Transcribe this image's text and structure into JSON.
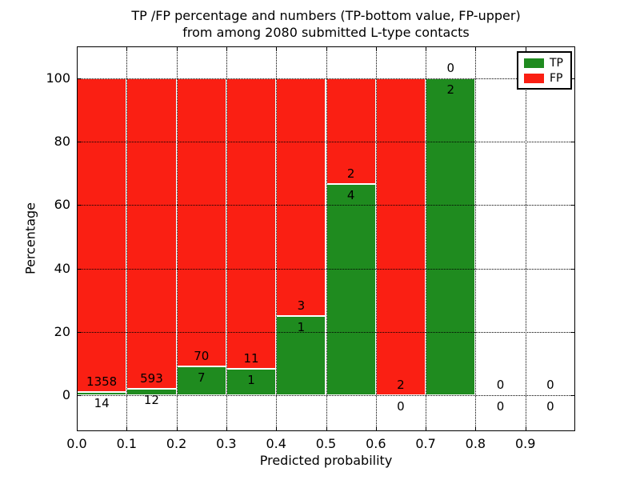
{
  "title": {
    "line1": "TP /FP percentage and numbers (TP-bottom value, FP-upper)",
    "line2": "from among 2080 submitted L-type contacts"
  },
  "axes": {
    "xlabel": "Predicted probability",
    "ylabel": "Percentage"
  },
  "legend": {
    "position": "upper right",
    "entries": [
      {
        "label": "TP",
        "color": "#1f8b1f"
      },
      {
        "label": "FP",
        "color": "#fa1f13"
      }
    ]
  },
  "chart_data": {
    "type": "bar",
    "stacked": true,
    "normalized": "each bar scaled to 100%; count labels shown (TP below boundary, FP above)",
    "title": "TP /FP percentage and numbers (TP-bottom value, FP-upper)\nfrom among 2080 submitted L-type contacts",
    "xlabel": "Predicted probability",
    "ylabel": "Percentage",
    "categories": [
      "0.0-0.1",
      "0.1-0.2",
      "0.2-0.3",
      "0.3-0.4",
      "0.4-0.5",
      "0.5-0.6",
      "0.6-0.7",
      "0.7-0.8",
      "0.8-0.9",
      "0.9-1.0"
    ],
    "bin_edges": [
      0.0,
      0.1,
      0.2,
      0.3,
      0.4,
      0.5,
      0.6,
      0.7,
      0.8,
      0.9,
      1.0
    ],
    "series": [
      {
        "name": "TP",
        "color": "#1f8b1f",
        "values": [
          14,
          12,
          7,
          1,
          1,
          4,
          0,
          2,
          0,
          0
        ]
      },
      {
        "name": "FP",
        "color": "#fa1f13",
        "values": [
          1358,
          593,
          70,
          11,
          3,
          2,
          2,
          0,
          0,
          0
        ]
      }
    ],
    "tp_percent_of_bar": [
      1.02,
      1.98,
      9.09,
      8.33,
      25.0,
      66.67,
      0.0,
      100.0,
      null,
      null
    ],
    "total_contacts": 2080,
    "xticks": [
      "0.0",
      "0.1",
      "0.2",
      "0.3",
      "0.4",
      "0.5",
      "0.6",
      "0.7",
      "0.8",
      "0.9"
    ],
    "yticks": [
      0,
      20,
      40,
      60,
      80,
      100
    ],
    "xlim": [
      0.0,
      1.0
    ],
    "ylim": [
      -11.5,
      110.5
    ],
    "grid": "dotted, drawn above bars",
    "legend_position": "upper right"
  }
}
